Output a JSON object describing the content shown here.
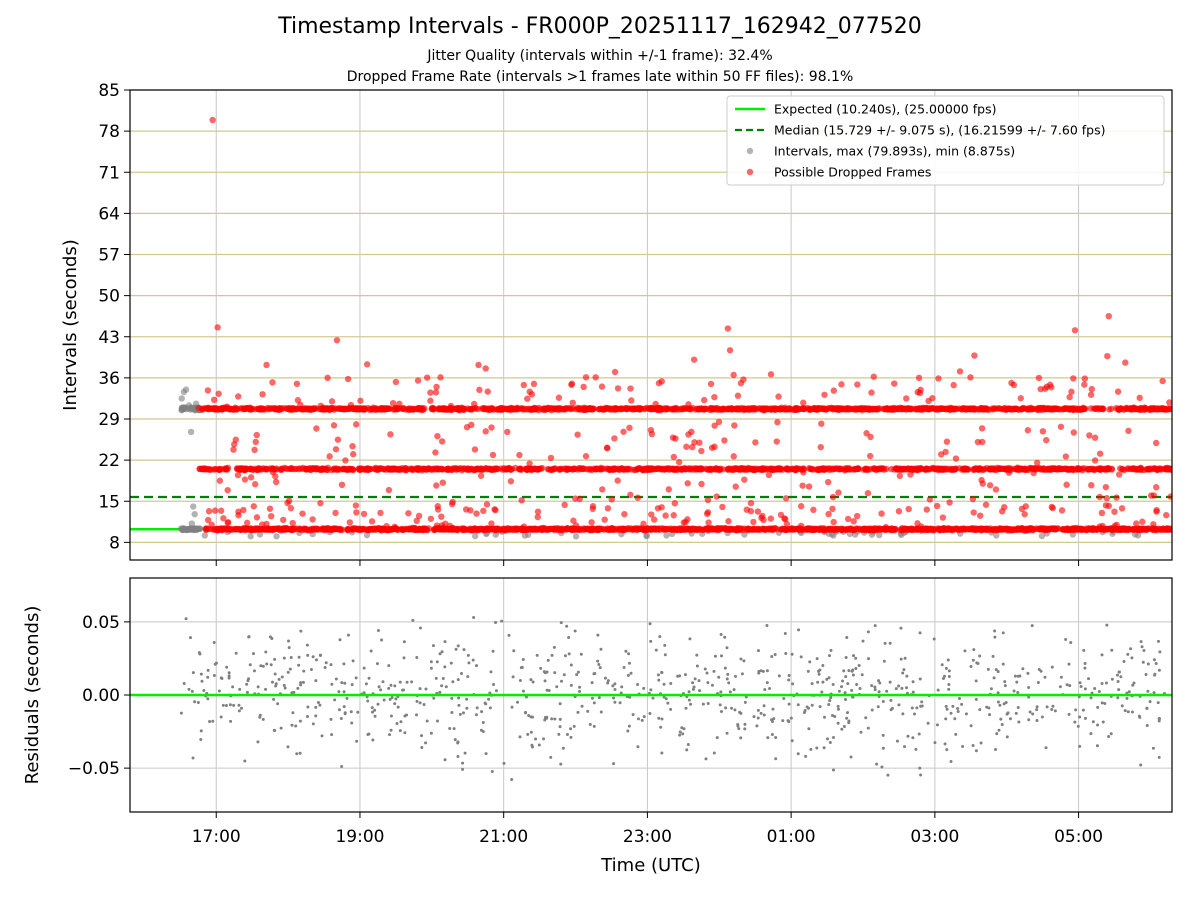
{
  "chart_data": [
    {
      "type": "scatter",
      "title": "Timestamp Intervals - FR000P_20251117_162942_077520",
      "subtitle1": "Jitter Quality (intervals within +/-1 frame): 32.4%",
      "subtitle2": "Dropped Frame Rate (intervals >1 frames late within 50 FF files): 98.1%",
      "xlabel": "",
      "ylabel": "Intervals (seconds)",
      "xlim": [
        15.8,
        30.3
      ],
      "ylim": [
        5.0,
        85.0
      ],
      "yticks": [
        8,
        15,
        22,
        29,
        36,
        43,
        50,
        57,
        64,
        71,
        78,
        85
      ],
      "yticklabels": [
        "8",
        "15",
        "22",
        "29",
        "36",
        "43",
        "50",
        "57",
        "64",
        "71",
        "78",
        "85"
      ],
      "xticks": [
        17,
        19,
        21,
        23,
        25,
        27,
        29
      ],
      "expected_interval": 10.24,
      "expected_line_x": [
        15.8,
        16.8
      ],
      "median_interval": 15.729,
      "bands_note": "Dropped-frame intervals cluster near 10.24 s, 20.48 s and 30.72 s across the whole night",
      "series": [
        {
          "name": "Expected (10.240s), (25.00000 fps)",
          "color": "#00ee00",
          "style": "solid-line"
        },
        {
          "name": "Median (15.729 +/- 9.075 s), (16.21599 +/- 7.60 fps)",
          "color": "#008000",
          "style": "dashed-line"
        },
        {
          "name": "Intervals, max (79.893s), min (8.875s)",
          "color": "#808080",
          "style": "markers"
        },
        {
          "name": "Possible Dropped Frames",
          "color": "#ff0000",
          "style": "markers"
        }
      ],
      "dropped_outliers": [
        [
          16.95,
          79.9
        ],
        [
          17.02,
          44.6
        ],
        [
          18.68,
          42.4
        ],
        [
          24.12,
          44.4
        ],
        [
          24.15,
          40.7
        ],
        [
          26.78,
          36.0
        ],
        [
          28.95,
          44.1
        ],
        [
          29.42,
          46.5
        ],
        [
          29.4,
          39.7
        ],
        [
          26.15,
          36.2
        ],
        [
          20.65,
          38.2
        ],
        [
          20.75,
          37.6
        ],
        [
          22.55,
          37.0
        ],
        [
          23.65,
          39.1
        ],
        [
          27.55,
          39.8
        ],
        [
          17.7,
          38.2
        ],
        [
          19.1,
          38.3
        ],
        [
          27.35,
          37.1
        ],
        [
          29.65,
          38.6
        ],
        [
          18.55,
          36.0
        ],
        [
          21.95,
          35.0
        ],
        [
          23.2,
          35.4
        ],
        [
          24.72,
          36.6
        ],
        [
          25.7,
          34.9
        ],
        [
          27.05,
          35.9
        ],
        [
          28.62,
          34.4
        ],
        [
          19.5,
          35.3
        ],
        [
          21.28,
          34.8
        ],
        [
          22.28,
          36.1
        ],
        [
          24.2,
          36.5
        ],
        [
          28.1,
          34.8
        ],
        [
          29.85,
          32.6
        ],
        [
          17.15,
          31.1
        ],
        [
          25.42,
          28.2
        ],
        [
          20.75,
          26.9
        ],
        [
          21.05,
          26.8
        ],
        [
          28.55,
          25.4
        ],
        [
          29.15,
          26.2
        ],
        [
          17.25,
          24.7
        ],
        [
          17.55,
          25.1
        ],
        [
          23.9,
          24.1
        ],
        [
          20.05,
          23.3
        ],
        [
          26.1,
          22.7
        ],
        [
          27.15,
          23.4
        ],
        [
          29.3,
          23.1
        ],
        [
          17.4,
          18.7
        ],
        [
          18.75,
          17.8
        ],
        [
          21.1,
          18.4
        ],
        [
          25.25,
          17.5
        ],
        [
          27.85,
          17.0
        ],
        [
          29.38,
          17.4
        ],
        [
          18.95,
          13.1
        ],
        [
          22.45,
          13.8
        ],
        [
          24.6,
          12.5
        ],
        [
          26.5,
          13.3
        ],
        [
          28.25,
          12.8
        ],
        [
          17.1,
          12.1
        ],
        [
          16.9,
          13.3
        ],
        [
          20.55,
          28.0
        ],
        [
          22.75,
          27.5
        ]
      ],
      "gray_initial_points": [
        [
          16.52,
          32.5
        ],
        [
          16.55,
          33.6
        ],
        [
          16.58,
          34.0
        ],
        [
          16.62,
          31.3
        ],
        [
          16.65,
          26.8
        ],
        [
          16.66,
          11.2
        ],
        [
          16.68,
          14.1
        ],
        [
          16.7,
          12.8
        ],
        [
          16.72,
          31.6
        ],
        [
          16.75,
          30.9
        ]
      ]
    },
    {
      "type": "scatter",
      "xlabel": "Time (UTC)",
      "ylabel": "Residuals (seconds)",
      "xlim": [
        15.8,
        30.3
      ],
      "ylim": [
        -0.08,
        0.08
      ],
      "yticks": [
        0.05,
        0.0,
        -0.05
      ],
      "yticklabels": [
        "0.05",
        "0.00",
        "−0.05"
      ],
      "xticks": [
        17,
        19,
        21,
        23,
        25,
        27,
        29
      ],
      "xticklabels": [
        "17:00",
        "19:00",
        "21:00",
        "23:00",
        "01:00",
        "03:00",
        "05:00"
      ],
      "zero_line": 0.0,
      "series": [
        {
          "name": "Residuals",
          "color": "#808080",
          "style": "markers",
          "spread_std": 0.03,
          "x_range": [
            16.5,
            30.2
          ]
        },
        {
          "name": "Zero",
          "color": "#00ee00",
          "style": "solid-line"
        }
      ]
    }
  ],
  "colors": {
    "expected": "#00ee00",
    "median": "#008000",
    "intervals": "#808080",
    "dropped": "#ff0000",
    "ygrid_top": "#d4c88f",
    "xgrid": "#c8c8c8"
  }
}
